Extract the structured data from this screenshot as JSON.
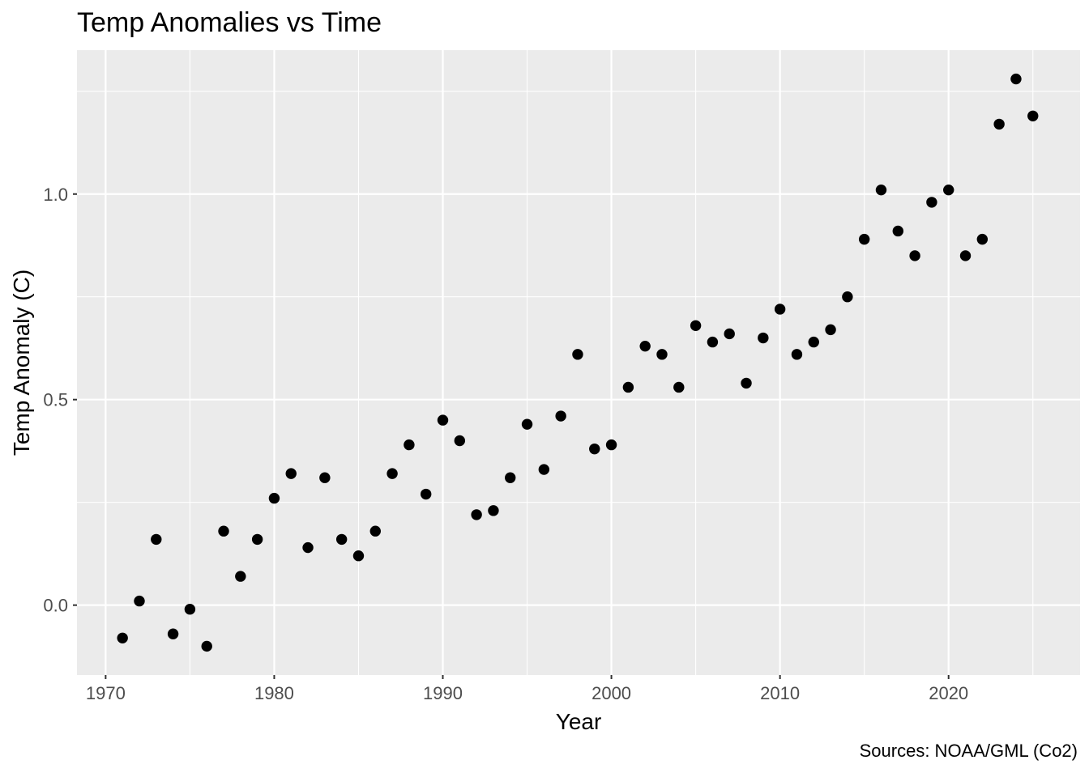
{
  "chart_data": {
    "type": "scatter",
    "title": "Temp Anomalies vs Time",
    "xlabel": "Year",
    "ylabel": "Temp Anomaly (C)",
    "caption": "Sources: NOAA/GML (Co2)",
    "x": [
      1971,
      1972,
      1973,
      1974,
      1975,
      1976,
      1977,
      1978,
      1979,
      1980,
      1981,
      1982,
      1983,
      1984,
      1985,
      1986,
      1987,
      1988,
      1989,
      1990,
      1991,
      1992,
      1993,
      1994,
      1995,
      1996,
      1997,
      1998,
      1999,
      2000,
      2001,
      2002,
      2003,
      2004,
      2005,
      2006,
      2007,
      2008,
      2009,
      2010,
      2011,
      2012,
      2013,
      2014,
      2015,
      2016,
      2017,
      2018,
      2019,
      2020,
      2021,
      2022,
      2023,
      2024,
      2025
    ],
    "y": [
      -0.08,
      0.01,
      0.16,
      -0.07,
      -0.01,
      -0.1,
      0.18,
      0.07,
      0.16,
      0.26,
      0.32,
      0.14,
      0.31,
      0.16,
      0.12,
      0.18,
      0.32,
      0.39,
      0.27,
      0.45,
      0.4,
      0.22,
      0.23,
      0.31,
      0.44,
      0.33,
      0.46,
      0.61,
      0.38,
      0.39,
      0.53,
      0.63,
      0.61,
      0.53,
      0.68,
      0.64,
      0.66,
      0.54,
      0.65,
      0.72,
      0.61,
      0.64,
      0.67,
      0.75,
      0.89,
      1.01,
      0.91,
      0.85,
      0.98,
      1.01,
      0.85,
      0.89,
      1.17,
      1.28,
      1.19
    ],
    "xlim": [
      1968.3,
      2027.8
    ],
    "ylim": [
      -0.17,
      1.35
    ],
    "x_ticks": [
      1970,
      1980,
      1990,
      2000,
      2010,
      2020
    ],
    "x_tick_labels": [
      "1970",
      "1980",
      "1990",
      "2000",
      "2010",
      "2020"
    ],
    "x_minor_ticks": [
      1975,
      1985,
      1995,
      2005,
      2015,
      2025
    ],
    "y_ticks": [
      0.0,
      0.5,
      1.0
    ],
    "y_tick_labels": [
      "0.0",
      "0.5",
      "1.0"
    ],
    "y_minor_ticks": [
      0.25,
      0.75,
      1.25
    ],
    "grid": true,
    "legend": false,
    "point_color": "#000000",
    "panel_background": "#EBEBEB",
    "gridline_color": "#FFFFFF",
    "tick_mark_color": "#333333",
    "tick_label_color": "#4D4D4D"
  }
}
